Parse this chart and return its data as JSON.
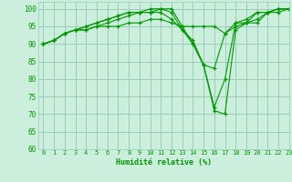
{
  "xlabel": "Humidité relative (%)",
  "bg_color": "#cceedd",
  "grid_color": "#99ccbb",
  "line_color": "#009900",
  "xlim": [
    -0.5,
    23
  ],
  "ylim": [
    60,
    102
  ],
  "yticks": [
    60,
    65,
    70,
    75,
    80,
    85,
    90,
    95,
    100
  ],
  "xticks": [
    0,
    1,
    2,
    3,
    4,
    5,
    6,
    7,
    8,
    9,
    10,
    11,
    12,
    13,
    14,
    15,
    16,
    17,
    18,
    19,
    20,
    21,
    22,
    23
  ],
  "series": [
    [
      90,
      91,
      93,
      94,
      95,
      96,
      97,
      98,
      99,
      99,
      100,
      100,
      100,
      95,
      90,
      84,
      83,
      93,
      96,
      97,
      99,
      99,
      100,
      100
    ],
    [
      90,
      91,
      93,
      94,
      94,
      95,
      96,
      97,
      98,
      99,
      99,
      100,
      99,
      94,
      90,
      84,
      72,
      80,
      96,
      96,
      99,
      99,
      100,
      100
    ],
    [
      90,
      91,
      93,
      94,
      95,
      96,
      97,
      98,
      99,
      99,
      99,
      99,
      97,
      94,
      91,
      84,
      71,
      70,
      94,
      96,
      97,
      99,
      100,
      100
    ],
    [
      90,
      91,
      93,
      94,
      94,
      95,
      95,
      95,
      96,
      96,
      97,
      97,
      96,
      95,
      95,
      95,
      95,
      93,
      95,
      96,
      96,
      99,
      99,
      100
    ]
  ]
}
